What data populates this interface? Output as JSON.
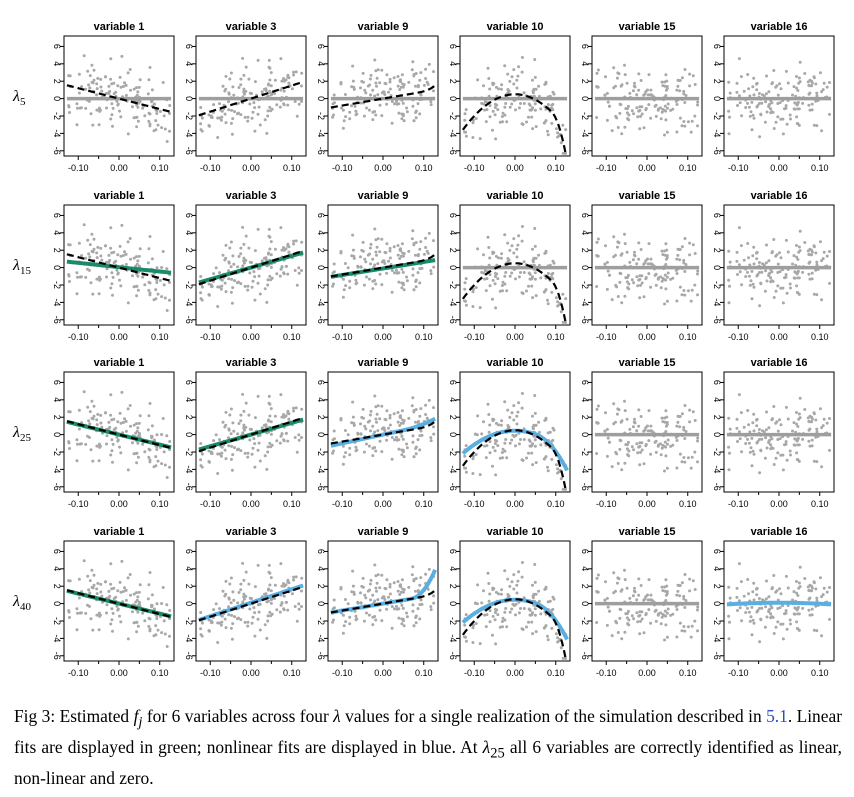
{
  "chart_data": {
    "type": "scatter",
    "description_rows": "rows correspond to lambda values, columns to variables; each panel shows points (grey), true function (black dashed) and estimated fit (grey zero / green linear / blue nonlinear)",
    "rows": [
      {
        "label": "λ",
        "sub": "5"
      },
      {
        "label": "λ",
        "sub": "15"
      },
      {
        "label": "λ",
        "sub": "25"
      },
      {
        "label": "λ",
        "sub": "40"
      }
    ],
    "columns": [
      {
        "title": "variable 1",
        "truth": "linear_neg"
      },
      {
        "title": "variable 3",
        "truth": "linear_pos"
      },
      {
        "title": "variable 9",
        "truth": "cubic_up"
      },
      {
        "title": "variable 10",
        "truth": "hump"
      },
      {
        "title": "variable 15",
        "truth": "zero"
      },
      {
        "title": "variable 16",
        "truth": "zero"
      }
    ],
    "fits": [
      [
        "zero",
        "zero",
        "zero",
        "zero",
        "zero",
        "zero"
      ],
      [
        "linear_weak_neg",
        "linear_pos",
        "linear_weak_pos",
        "zero",
        "zero",
        "zero"
      ],
      [
        "linear_neg",
        "linear_pos",
        "nonlinear_mild",
        "nonlinear_hump",
        "zero",
        "zero"
      ],
      [
        "linear_neg",
        "nonlinear_pos",
        "nonlinear_up",
        "nonlinear_hump",
        "zero",
        "nonlinear_flat"
      ]
    ],
    "fit_colors": {
      "zero": "#9e9e9e",
      "linear": "#1a8a6a",
      "nonlinear": "#5aaee0",
      "truth": "#000000",
      "points": "#a8a8a8"
    },
    "x_ticks": [
      -0.1,
      0.0,
      0.1
    ],
    "x_tick_labels": [
      "-0.10",
      "0.00",
      "0.10"
    ],
    "x_minor_ticks": [
      -0.05,
      0.05
    ],
    "xlim": [
      -0.135,
      0.135
    ],
    "y_ticks": [
      -6,
      -4,
      -2,
      0,
      2,
      4,
      6
    ],
    "y_tick_labels": [
      "-6",
      "-4",
      "-2",
      "0",
      "2",
      "4",
      "6"
    ],
    "ylim": [
      -6.6,
      7.2
    ],
    "n_points": 150
  },
  "caption": {
    "prefix": "Fig 3: Estimated ",
    "fj": "f",
    "fj_sub": "j",
    "mid1": " for 6 variables across four ",
    "lambda": "λ",
    "mid2": " values for a single realization of the simulation described in ",
    "ref": "5.1",
    "mid3": ". Linear fits are displayed in green; nonlinear fits are displayed in blue. At ",
    "lambda2": "λ",
    "lambda2_sub": "25",
    "end": " all 6 variables are correctly identified as linear, non-linear and zero."
  }
}
